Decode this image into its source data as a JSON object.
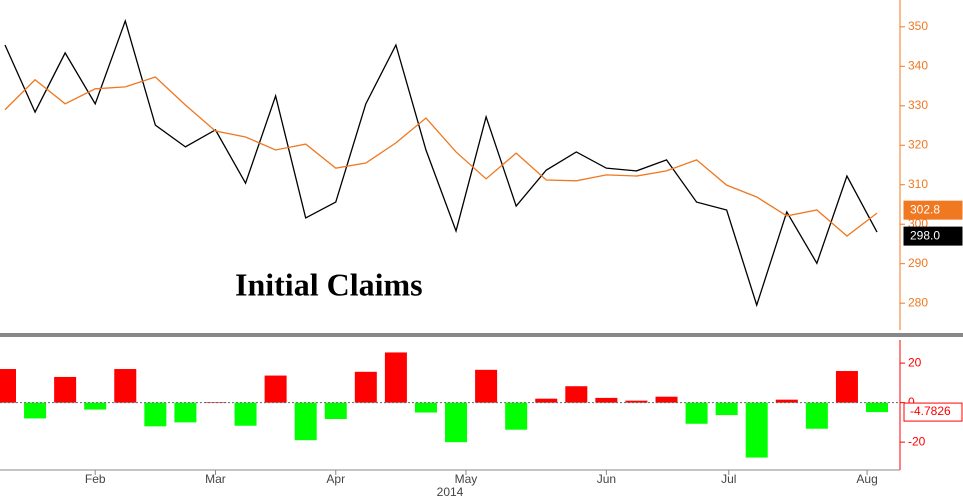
{
  "chart_data": [
    {
      "type": "line",
      "annotation": "Initial Claims",
      "categories": [
        null,
        null,
        null,
        null,
        null,
        null,
        null,
        null,
        null,
        null,
        null,
        null,
        null,
        null,
        null,
        null,
        null,
        null,
        null,
        null,
        null,
        null,
        null,
        null,
        null,
        null,
        null,
        null,
        null,
        null
      ],
      "xticks": [
        {
          "value": 3,
          "label": "Feb"
        },
        {
          "value": 7,
          "label": "Mar"
        },
        {
          "value": 11,
          "label": "Apr"
        },
        {
          "value": 15.33,
          "label": "May"
        },
        {
          "value": 20,
          "label": "Jun"
        },
        {
          "value": 24.07,
          "label": "Jul"
        },
        {
          "value": 28.67,
          "label": "Aug"
        }
      ],
      "xlabel": "2014",
      "ylim": [
        273.2,
        356.8
      ],
      "yticks": [
        280,
        290,
        300,
        310,
        320,
        330,
        340,
        350
      ],
      "axis_color": "#f07820",
      "series": [
        {
          "color": "#000000",
          "values": [
            345.4,
            328.4,
            343.4,
            330.5,
            351.5,
            325.1,
            319.6,
            323.9,
            310.4,
            332.5,
            301.6,
            305.6,
            330.5,
            345.4,
            318.8,
            298.3,
            327.2,
            304.6,
            313.7,
            318.3,
            314.2,
            313.5,
            316.3,
            305.6,
            303.6,
            279.5,
            303.1,
            290.1,
            312.2,
            298.0
          ],
          "value_labels": [
            null,
            null,
            null,
            null,
            null,
            null,
            null,
            null,
            null,
            null,
            null,
            null,
            null,
            null,
            null,
            null,
            null,
            null,
            null,
            null,
            null,
            null,
            null,
            null,
            null,
            null,
            null,
            null,
            null,
            "298.0"
          ]
        },
        {
          "color": "#f07820",
          "values": [
            329,
            336.6,
            330.5,
            334.3,
            334.8,
            337.3,
            330.2,
            323.6,
            322.1,
            318.8,
            320.3,
            314.2,
            315.5,
            320.6,
            326.9,
            318.3,
            311.5,
            318,
            311.2,
            311,
            312.5,
            312.2,
            313.5,
            316.3,
            309.9,
            306.9,
            302.1,
            303.6,
            297,
            302.8
          ],
          "value_labels": [
            null,
            null,
            null,
            null,
            null,
            null,
            null,
            null,
            null,
            null,
            null,
            null,
            null,
            null,
            null,
            null,
            null,
            null,
            null,
            null,
            null,
            null,
            null,
            null,
            null,
            null,
            null,
            null,
            null,
            "302.8"
          ]
        }
      ]
    },
    {
      "type": "bar",
      "values": [
        17,
        -8,
        13,
        -3.5,
        17,
        -12,
        -10,
        0.3,
        -11.7,
        13.7,
        -19,
        -8.3,
        15.6,
        25.4,
        -5,
        -20,
        16.6,
        -13.7,
        2,
        8.3,
        2.4,
        1,
        3,
        -10.7,
        -6.3,
        -27.8,
        1.5,
        -13.2,
        16,
        -4.7826
      ],
      "value_labels": [
        null,
        null,
        null,
        null,
        null,
        null,
        null,
        null,
        null,
        null,
        null,
        null,
        null,
        null,
        null,
        null,
        null,
        null,
        null,
        null,
        null,
        null,
        null,
        null,
        null,
        null,
        null,
        null,
        null,
        "-4.7826"
      ],
      "positive_color": "#ff0000",
      "negative_color": "#00ff00",
      "axis_color": "#ff0000",
      "ylim": [
        -34.1,
        31.7
      ],
      "yticks": [
        -20,
        0,
        20
      ]
    }
  ]
}
